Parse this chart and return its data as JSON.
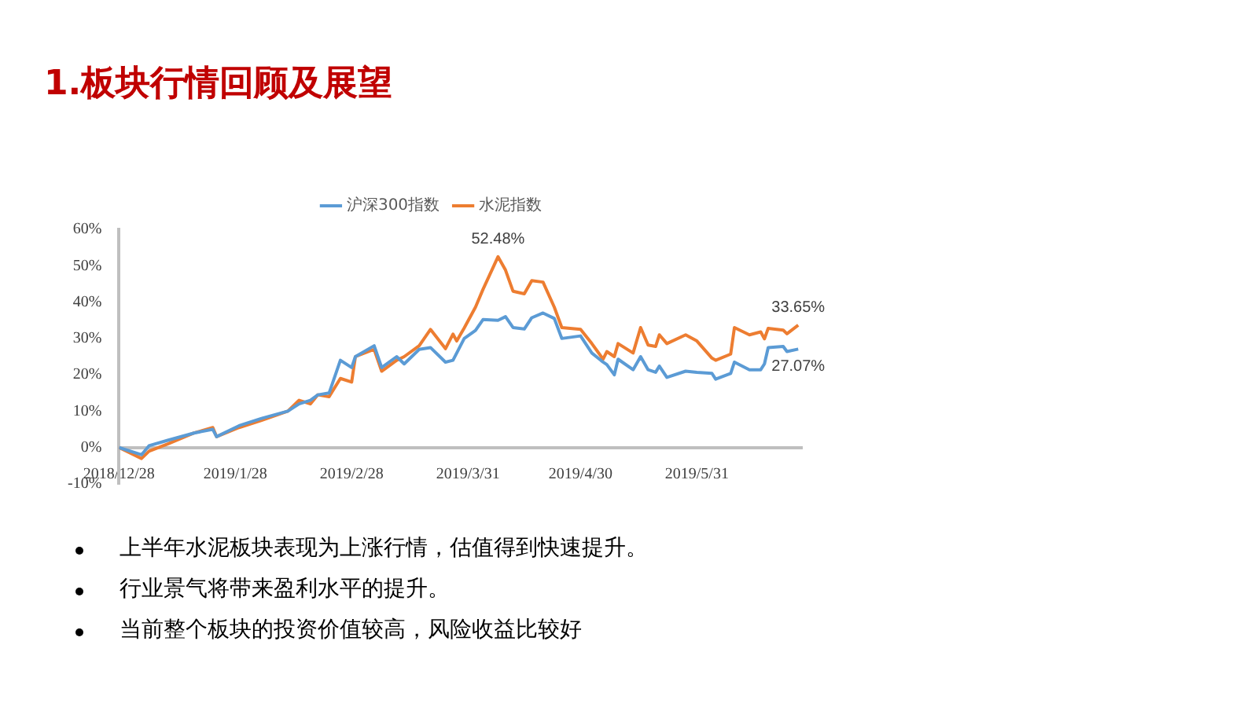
{
  "chart_data": {
    "type": "line",
    "title": "1.板块行情回顾及展望",
    "annotations": [
      {
        "text": "52.48%",
        "x": "2019-04-08",
        "y": 52.48
      },
      {
        "text": "33.65%",
        "x": "2019-06-27",
        "y": 33.65
      },
      {
        "text": "27.07%",
        "x": "2019-06-27",
        "y": 27.07
      },
      "上半年水泥板块表现为上涨行情，估值得到快速提升。",
      "行业景气将带来盈利水平的提升。",
      "当前整个板块的投资价值较高，风险收益比较好"
    ],
    "x": [
      "2018-12-28",
      "2019-01-03",
      "2019-01-05",
      "2019-01-10",
      "2019-01-17",
      "2019-01-22",
      "2019-01-23",
      "2019-01-29",
      "2019-02-04",
      "2019-02-11",
      "2019-02-14",
      "2019-02-17",
      "2019-02-19",
      "2019-02-22",
      "2019-02-25",
      "2019-02-28",
      "2019-03-01",
      "2019-03-06",
      "2019-03-08",
      "2019-03-12",
      "2019-03-14",
      "2019-03-18",
      "2019-03-21",
      "2019-03-25",
      "2019-03-27",
      "2019-03-28",
      "2019-03-30",
      "2019-04-02",
      "2019-04-04",
      "2019-04-08",
      "2019-04-10",
      "2019-04-12",
      "2019-04-15",
      "2019-04-17",
      "2019-04-20",
      "2019-04-23",
      "2019-04-25",
      "2019-04-30",
      "2019-05-03",
      "2019-05-06",
      "2019-05-07",
      "2019-05-09",
      "2019-05-10",
      "2019-05-14",
      "2019-05-16",
      "2019-05-18",
      "2019-05-20",
      "2019-05-21",
      "2019-05-23",
      "2019-05-28",
      "2019-05-31",
      "2019-06-04",
      "2019-06-05",
      "2019-06-09",
      "2019-06-10",
      "2019-06-14",
      "2019-06-17",
      "2019-06-18",
      "2019-06-19",
      "2019-06-23",
      "2019-06-24",
      "2019-06-27"
    ],
    "series": [
      {
        "name": "沪深300指数",
        "color": "#5b9bd5",
        "values": [
          0,
          -2,
          0.5,
          2,
          4,
          5,
          3,
          6,
          8,
          10,
          12,
          13,
          14.5,
          15,
          24,
          22,
          25,
          28,
          22,
          25,
          23,
          27,
          27.5,
          23.5,
          24,
          26,
          30,
          32.2,
          35.2,
          35,
          36,
          33,
          32.6,
          35.7,
          37,
          35.5,
          30,
          30.7,
          26,
          23.5,
          22.8,
          20,
          24.3,
          21.4,
          25,
          21.4,
          20.7,
          22.4,
          19.3,
          21,
          20.7,
          20.4,
          18.8,
          20.4,
          23.5,
          21.4,
          21.4,
          23,
          27.5,
          27.8,
          26.4,
          27.07
        ]
      },
      {
        "name": "水泥指数",
        "color": "#ed7d31",
        "values": [
          0,
          -3,
          -1,
          1,
          4,
          5.5,
          3,
          5.5,
          7.5,
          10,
          13,
          12,
          14.5,
          14,
          19,
          18,
          25,
          27,
          21,
          24,
          25,
          28,
          32.5,
          27.2,
          31.2,
          29.3,
          32.9,
          38.6,
          43.5,
          52.48,
          48.8,
          43,
          42.3,
          45.9,
          45.5,
          38.6,
          33,
          32.5,
          28.6,
          24.3,
          26.4,
          25,
          28.6,
          26,
          33,
          28.2,
          27.8,
          31,
          28.6,
          31,
          29.3,
          24.6,
          24,
          25.7,
          33,
          31,
          31.8,
          29.9,
          32.8,
          32.3,
          31.3,
          33.65
        ]
      }
    ],
    "xlim": [
      "2018-12-28",
      "2019-06-28"
    ],
    "xticks": [
      {
        "value": "2018-12-28",
        "label": "2018/12/28"
      },
      {
        "value": "2019-01-28",
        "label": "2019/1/28"
      },
      {
        "value": "2019-02-28",
        "label": "2019/2/28"
      },
      {
        "value": "2019-03-31",
        "label": "2019/3/31"
      },
      {
        "value": "2019-04-30",
        "label": "2019/4/30"
      },
      {
        "value": "2019-05-31",
        "label": "2019/5/31"
      }
    ],
    "ylim": [
      -10,
      60
    ],
    "yticks": [
      {
        "value": -10,
        "label": "-10%"
      },
      {
        "value": 0,
        "label": "0%"
      },
      {
        "value": 10,
        "label": "10%"
      },
      {
        "value": 20,
        "label": "20%"
      },
      {
        "value": 30,
        "label": "30%"
      },
      {
        "value": 40,
        "label": "40%"
      },
      {
        "value": 50,
        "label": "50%"
      },
      {
        "value": 60,
        "label": "60%"
      }
    ],
    "grid": false,
    "legend": "top",
    "marker": "none",
    "line_style": "solid"
  }
}
